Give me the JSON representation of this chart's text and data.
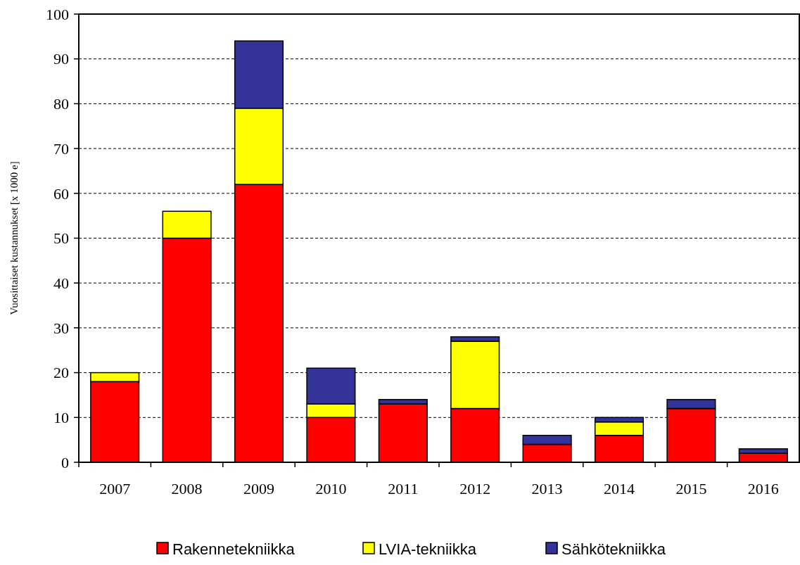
{
  "chart_data": {
    "type": "bar",
    "stacked": true,
    "ylabel": "Vuosittaiset kustannukset [x 1000 e]",
    "categories": [
      "2007",
      "2008",
      "2009",
      "2010",
      "2011",
      "2012",
      "2013",
      "2014",
      "2015",
      "2016"
    ],
    "series": [
      {
        "name": "Rakennetekniikka",
        "color": "#ff0000",
        "values": [
          18,
          50,
          62,
          10,
          13,
          12,
          4,
          6,
          12,
          2
        ]
      },
      {
        "name": "LVIA-tekniikka",
        "color": "#ffff00",
        "values": [
          2,
          6,
          17,
          3,
          0,
          15,
          0,
          3,
          0,
          0
        ]
      },
      {
        "name": "Sähkötekniikka",
        "color": "#333399",
        "values": [
          0,
          0,
          15,
          8,
          1,
          1,
          2,
          1,
          2,
          1
        ]
      }
    ],
    "ylim": [
      0,
      100
    ],
    "yticks": [
      0,
      10,
      20,
      30,
      40,
      50,
      60,
      70,
      80,
      90,
      100
    ],
    "grid": "y",
    "legend": "bottom"
  }
}
